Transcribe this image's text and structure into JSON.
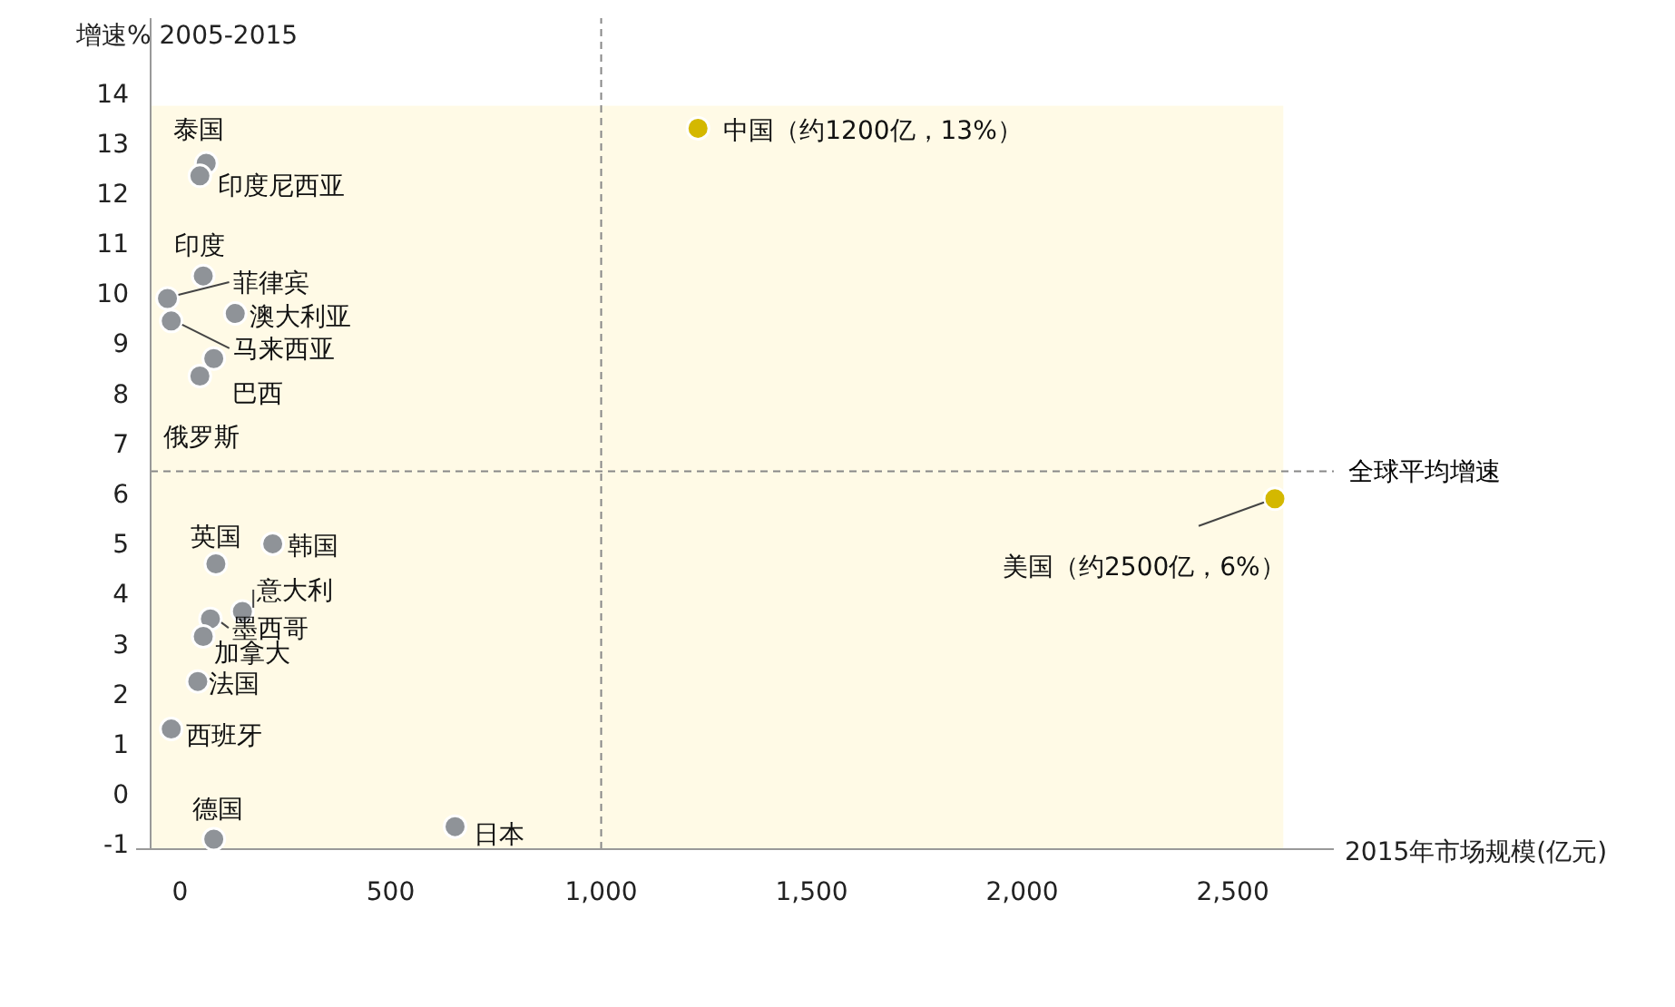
{
  "chart_data": {
    "type": "scatter",
    "xlabel": "2015年市场规模(亿元)",
    "ylabel": "增速% 2005-2015",
    "marker": "circle",
    "grid": false,
    "xlim": [
      -70,
      2740
    ],
    "ylim": [
      -1.1,
      15.5
    ],
    "xticks": [
      0,
      500,
      {
        "value": 1000,
        "label": "1,000"
      },
      {
        "value": 1500,
        "label": "1,500"
      },
      {
        "value": 2000,
        "label": "2,000"
      },
      {
        "value": 2500,
        "label": "2,500"
      }
    ],
    "yticks": [
      -1,
      0,
      1,
      2,
      3,
      4,
      5,
      6,
      7,
      8,
      9,
      10,
      11,
      12,
      13,
      14
    ],
    "series": [
      {
        "color": "#8f9398",
        "x": [
          62,
          47,
          55,
          -30,
          131,
          -21,
          80,
          47,
          85,
          220,
          148,
          72,
          55,
          42,
          -21,
          80,
          653
        ],
        "values": [
          12.6,
          12.35,
          10.35,
          9.9,
          9.6,
          9.45,
          8.7,
          8.35,
          4.6,
          5.0,
          3.65,
          3.5,
          3.15,
          2.25,
          1.3,
          -0.9,
          -0.65
        ]
      },
      {
        "color": "#d4b800",
        "x": [
          1230,
          2600
        ],
        "values": [
          13.3,
          5.9
        ]
      }
    ],
    "ref_lines": [
      {
        "axis": "y",
        "value": 6.45,
        "label": "全球平均增速",
        "line_style": "dashed"
      },
      {
        "axis": "x",
        "value": 1000,
        "label": null,
        "line_style": "dashed"
      }
    ],
    "annotations": [
      {
        "text": "泰国",
        "x": 62,
        "y": 12.6
      },
      {
        "text": "印度尼西亚",
        "x": 47,
        "y": 12.35
      },
      {
        "text": "印度",
        "x": 55,
        "y": 10.35
      },
      {
        "text": "菲律宾",
        "x": -30,
        "y": 9.9
      },
      {
        "text": "澳大利亚",
        "x": 131,
        "y": 9.6
      },
      {
        "text": "马来西亚",
        "x": -21,
        "y": 9.45
      },
      {
        "text": "巴西",
        "x": 80,
        "y": 8.7
      },
      {
        "text": "俄罗斯",
        "x": 47,
        "y": 8.35
      },
      {
        "text": "英国",
        "x": 85,
        "y": 4.6
      },
      {
        "text": "韩国",
        "x": 220,
        "y": 5.0
      },
      {
        "text": "意大利",
        "x": 148,
        "y": 3.65
      },
      {
        "text": "墨西哥",
        "x": 72,
        "y": 3.5
      },
      {
        "text": "加拿大",
        "x": 55,
        "y": 3.15
      },
      {
        "text": "法国",
        "x": 42,
        "y": 2.25
      },
      {
        "text": "西班牙",
        "x": -21,
        "y": 1.3
      },
      {
        "text": "德国",
        "x": 80,
        "y": -0.9
      },
      {
        "text": "日本",
        "x": 653,
        "y": -0.65
      },
      {
        "text": "中国（约1200亿，13%）",
        "x": 1230,
        "y": 13.3
      },
      {
        "text": "美国（约2500亿，6%）",
        "x": 2600,
        "y": 5.9
      }
    ]
  }
}
